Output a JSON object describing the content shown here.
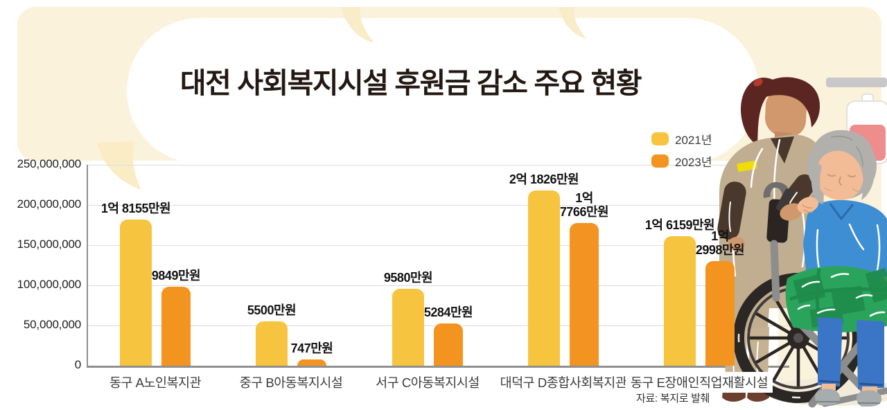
{
  "title": "대전 사회복지시설 후원금 감소 주요 현황",
  "source": "자료: 복지로 발췌",
  "legend": {
    "items": [
      {
        "label": "2021년",
        "color": "#F7C440"
      },
      {
        "label": "2023년",
        "color": "#F2941F"
      }
    ]
  },
  "chart_data": {
    "type": "bar",
    "title": "대전 사회복지시설 후원금 감소 주요 현황",
    "categories": [
      "동구 A노인복지관",
      "중구 B아동복지시설",
      "서구 C아동복지시설",
      "대덕구 D종합사회복지관",
      "동구 E장애인직업재활시설"
    ],
    "series": [
      {
        "name": "2021년",
        "color": "#F7C440",
        "values": [
          181550000,
          55000000,
          95800000,
          218260000,
          161590000
        ],
        "value_labels": [
          "1억 8155만원",
          "5500만원",
          "9580만원",
          "2억 1826만원",
          "1억 6159만원"
        ]
      },
      {
        "name": "2023년",
        "color": "#F2941F",
        "values": [
          98490000,
          7470000,
          52840000,
          177660000,
          129980000
        ],
        "value_labels": [
          "9849만원",
          "747만원",
          "5284만원",
          "1억\n7766만원",
          "1억\n2998만원"
        ]
      }
    ],
    "ylim": [
      0,
      250000000
    ],
    "y_ticks": [
      "250,000,000",
      "200,000,000",
      "150,000,000",
      "100,000,000",
      "50,000,000",
      "0"
    ],
    "xlabel": "",
    "ylabel": "",
    "grid": true,
    "legend_position": "top-right"
  },
  "illustration": {
    "name": "caregiver-pushing-elderly-woman-in-wheelchair"
  }
}
